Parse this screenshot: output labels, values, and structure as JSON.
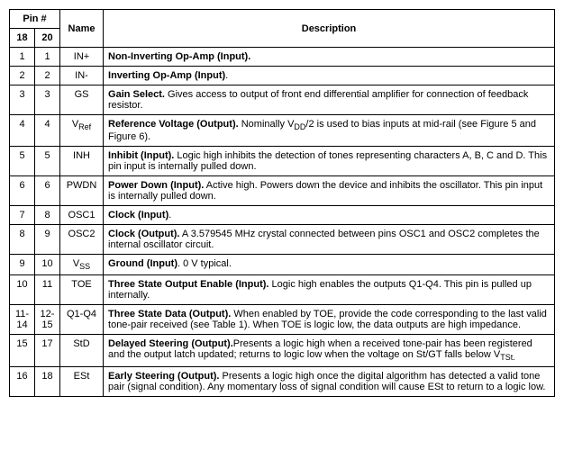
{
  "headers": {
    "pin_group": "Pin #",
    "pin18": "18",
    "pin20": "20",
    "name": "Name",
    "desc": "Description"
  },
  "rows": [
    {
      "p18": "1",
      "p20": "1",
      "name": "IN+",
      "bold": "Non-Inverting Op-Amp (Input).",
      "rest": ""
    },
    {
      "p18": "2",
      "p20": "2",
      "name": "IN-",
      "bold": "Inverting Op-Amp (Input)",
      "rest": "."
    },
    {
      "p18": "3",
      "p20": "3",
      "name": "GS",
      "bold": "Gain Select.",
      "rest": " Gives access to output of front end differential amplifier for connection of feedback resistor."
    },
    {
      "p18": "4",
      "p20": "4",
      "name_html": "V<sub>Ref</sub>",
      "bold": "Reference Voltage (Output).",
      "rest_html": " Nominally V<sub>DD</sub>/2 is used to bias inputs at mid-rail (see Figure 5 and Figure 6)."
    },
    {
      "p18": "5",
      "p20": "5",
      "name": "INH",
      "bold": "Inhibit (Input).",
      "rest": " Logic high inhibits the detection of tones representing characters A, B, C and D. This pin input is internally pulled down."
    },
    {
      "p18": "6",
      "p20": "6",
      "name": "PWDN",
      "bold": "Power Down (Input).",
      "rest": " Active high. Powers down the device and inhibits the oscillator. This pin input is internally pulled down."
    },
    {
      "p18": "7",
      "p20": "8",
      "name": "OSC1",
      "bold": "Clock (Input)",
      "rest": "."
    },
    {
      "p18": "8",
      "p20": "9",
      "name": "OSC2",
      "bold": "Clock (Output).",
      "rest": " A 3.579545 MHz crystal connected between pins OSC1 and OSC2 completes the internal oscillator circuit."
    },
    {
      "p18": "9",
      "p20": "10",
      "name_html": "V<sub>SS</sub>",
      "bold": "Ground (Input)",
      "rest": ". 0 V typical."
    },
    {
      "p18": "10",
      "p20": "11",
      "name": "TOE",
      "bold": "Three State Output Enable (Input).",
      "rest": " Logic high enables the outputs Q1-Q4. This pin is pulled up internally."
    },
    {
      "p18": "11-14",
      "p20": "12-15",
      "name": "Q1-Q4",
      "bold": "Three State Data (Output).",
      "rest": " When enabled by TOE, provide the code corresponding to the last valid tone-pair received (see Table 1). When TOE is logic low, the data outputs are high impedance."
    },
    {
      "p18": "15",
      "p20": "17",
      "name": "StD",
      "bold": "Delayed Steering (Output).",
      "rest_html": "Presents a logic high when a received tone-pair has been registered and the output latch updated; returns to logic low when the voltage on St/GT falls below V<sub>TSt.</sub>"
    },
    {
      "p18": "16",
      "p20": "18",
      "name": "ESt",
      "bold": "Early Steering (Output).",
      "rest": " Presents a logic high once the digital algorithm has detected a valid tone pair (signal condition). Any momentary loss of signal condition will cause ESt to return to a logic low."
    }
  ]
}
